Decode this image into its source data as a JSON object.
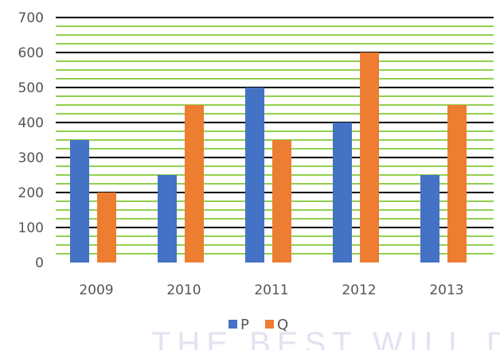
{
  "chart_data": {
    "type": "bar",
    "categories": [
      "2009",
      "2010",
      "2011",
      "2012",
      "2013"
    ],
    "series": [
      {
        "name": "P",
        "values": [
          350,
          250,
          500,
          400,
          250
        ],
        "color": "#4472C4"
      },
      {
        "name": "Q",
        "values": [
          200,
          450,
          350,
          600,
          450
        ],
        "color": "#ED7D31"
      }
    ],
    "y_ticks": [
      "0",
      "100",
      "200",
      "300",
      "400",
      "500",
      "600",
      "700"
    ],
    "ylim": [
      0,
      700
    ],
    "major_grid_color": "#000000",
    "minor_grid_color": "#92D050",
    "legend_placement": "bottom",
    "watermark": "THE BEST WILL DO"
  }
}
